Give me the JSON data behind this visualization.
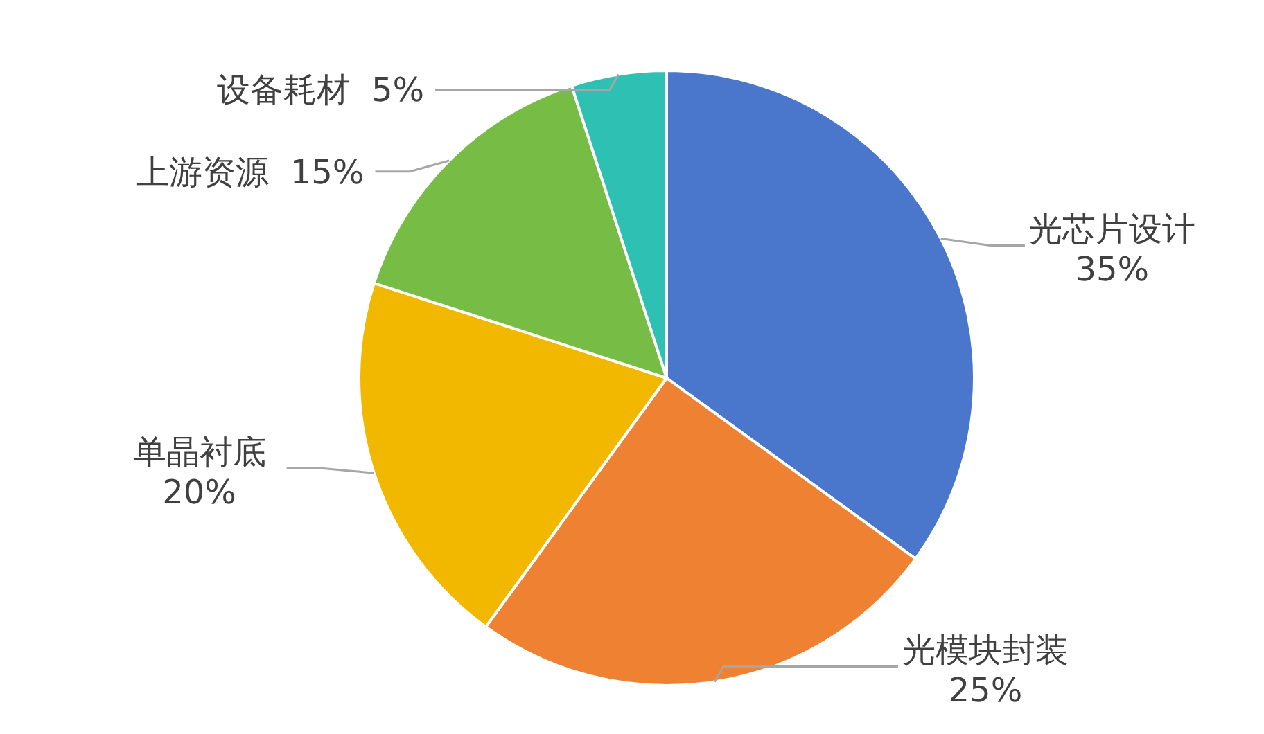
{
  "chart_data": {
    "type": "pie",
    "categories": [
      "光芯片设计",
      "光模块封装",
      "单晶衬底",
      "上游资源",
      "设备耗材"
    ],
    "values": [
      35,
      25,
      20,
      15,
      5
    ],
    "value_labels": [
      "35%",
      "25%",
      "20%",
      "15%",
      "5%"
    ],
    "colors": [
      "#4a76cc",
      "#ee8232",
      "#f2b800",
      "#77bd45",
      "#2fc0b4"
    ],
    "legend": false
  }
}
